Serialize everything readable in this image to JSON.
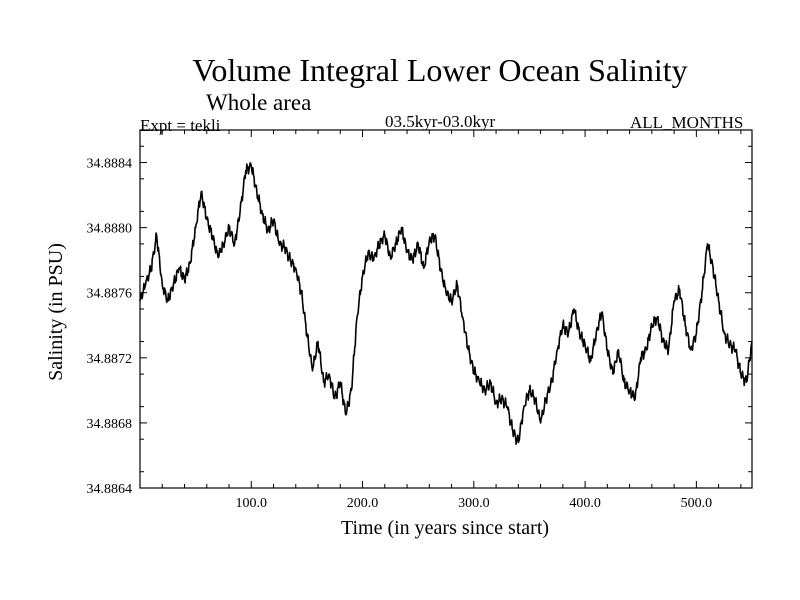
{
  "chart_data": {
    "type": "line",
    "title": "Volume Integral Lower Ocean Salinity",
    "subtitle": "Whole area",
    "experiment_label": "Expt = tekli",
    "period_label": "03.5kyr-03.0kyr",
    "months_label": "ALL_MONTHS",
    "xlabel": "Time (in years since start)",
    "ylabel": "Salinity (in PSU)",
    "xlim": [
      0,
      550
    ],
    "ylim": [
      34.8864,
      34.8886
    ],
    "x_ticks": [
      100,
      200,
      300,
      400,
      500
    ],
    "x_tick_labels": [
      "100.0",
      "200.0",
      "300.0",
      "400.0",
      "500.0"
    ],
    "y_ticks": [
      34.8864,
      34.8868,
      34.8872,
      34.8876,
      34.888,
      34.8884
    ],
    "y_tick_labels": [
      "34.8864",
      "34.8868",
      "34.8872",
      "34.8876",
      "34.8880",
      "34.8884"
    ],
    "grid": false,
    "series": [
      {
        "name": "salinity",
        "x": [
          0,
          5,
          10,
          15,
          20,
          25,
          30,
          35,
          40,
          45,
          50,
          55,
          60,
          65,
          70,
          75,
          80,
          85,
          90,
          95,
          100,
          105,
          110,
          115,
          120,
          125,
          130,
          135,
          140,
          145,
          150,
          155,
          160,
          165,
          170,
          175,
          180,
          185,
          190,
          195,
          200,
          205,
          210,
          215,
          220,
          225,
          230,
          235,
          240,
          245,
          250,
          255,
          260,
          265,
          270,
          275,
          280,
          285,
          290,
          295,
          300,
          305,
          310,
          315,
          320,
          325,
          330,
          335,
          340,
          345,
          350,
          355,
          360,
          365,
          370,
          375,
          380,
          385,
          390,
          395,
          400,
          405,
          410,
          415,
          420,
          425,
          430,
          435,
          440,
          445,
          450,
          455,
          460,
          465,
          470,
          475,
          480,
          485,
          490,
          495,
          500,
          505,
          510,
          515,
          520,
          525,
          530,
          535,
          540,
          545,
          550
        ],
        "values": [
          34.88755,
          34.88765,
          34.88775,
          34.88795,
          34.88765,
          34.88755,
          34.88765,
          34.88775,
          34.88768,
          34.88778,
          34.888,
          34.88822,
          34.88805,
          34.88795,
          34.88782,
          34.8879,
          34.888,
          34.8879,
          34.8881,
          34.88835,
          34.88838,
          34.88822,
          34.88808,
          34.88798,
          34.88805,
          34.8879,
          34.88788,
          34.8878,
          34.88775,
          34.8876,
          34.88735,
          34.88712,
          34.8873,
          34.88705,
          34.8871,
          34.88695,
          34.88705,
          34.88685,
          34.887,
          34.88745,
          34.8877,
          34.88785,
          34.8878,
          34.8879,
          34.88795,
          34.88782,
          34.8879,
          34.888,
          34.88785,
          34.8878,
          34.8879,
          34.88775,
          34.88792,
          34.88795,
          34.88775,
          34.8876,
          34.88755,
          34.88765,
          34.88745,
          34.88725,
          34.88712,
          34.88705,
          34.887,
          34.88705,
          34.88692,
          34.88695,
          34.8869,
          34.88675,
          34.88668,
          34.8869,
          34.887,
          34.88695,
          34.8868,
          34.88695,
          34.88705,
          34.88725,
          34.8874,
          34.88735,
          34.8875,
          34.88735,
          34.88728,
          34.88718,
          34.88735,
          34.88748,
          34.88725,
          34.8871,
          34.88725,
          34.88705,
          34.887,
          34.88695,
          34.8872,
          34.88725,
          34.8874,
          34.88745,
          34.8873,
          34.88725,
          34.88755,
          34.88762,
          34.8874,
          34.88725,
          34.88735,
          34.8876,
          34.8879,
          34.88775,
          34.88755,
          34.88735,
          34.88728,
          34.88725,
          34.8871,
          34.88705,
          34.8873
        ]
      }
    ]
  }
}
